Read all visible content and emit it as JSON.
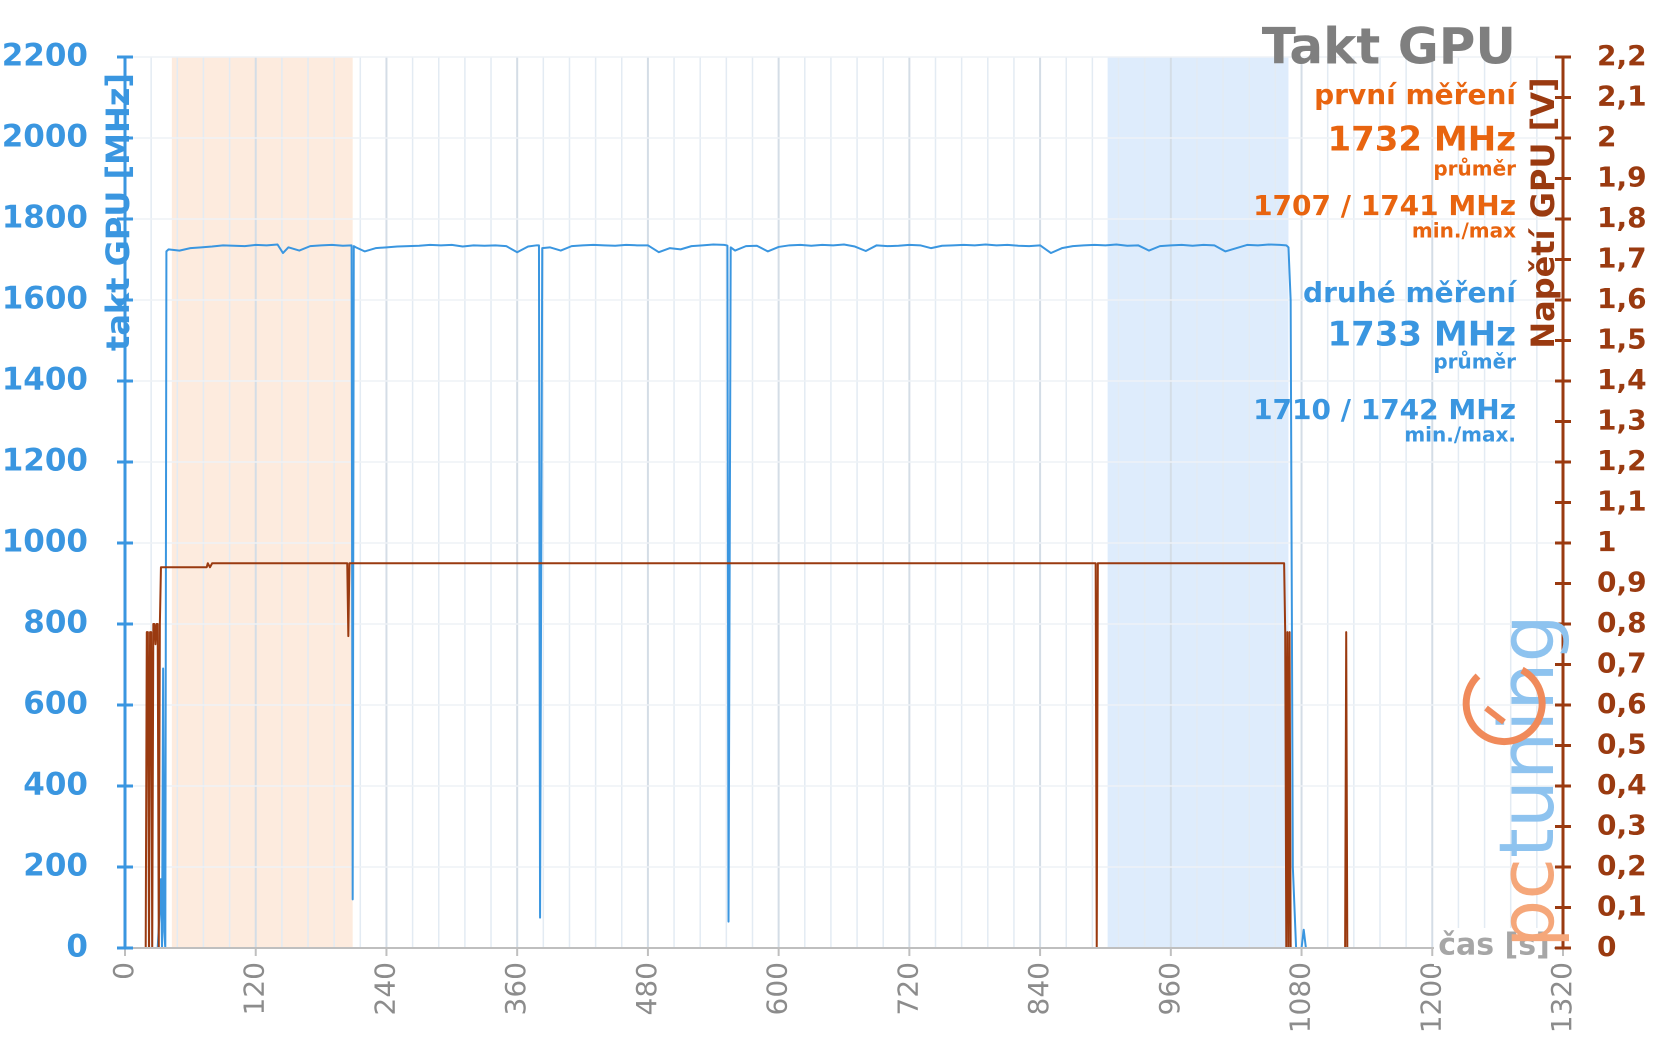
{
  "chart_data": {
    "type": "line",
    "title": "Takt GPU",
    "xlabel": "čas [s]",
    "ylabel": "takt GPU [MHz]",
    "y2label": "Napětí GPU [V]",
    "logo": [
      "pc",
      "tuning"
    ],
    "annotations": [
      {
        "text": "první měření",
        "color": "#e8640f"
      },
      {
        "text": "1732 MHz",
        "color": "#e8640f"
      },
      {
        "text": "průměr",
        "color": "#e8640f"
      },
      {
        "text": "1707 / 1741 MHz",
        "color": "#e8640f"
      },
      {
        "text": "min./max",
        "color": "#e8640f"
      },
      {
        "text": "druhé měření",
        "color": "#3a96e0"
      },
      {
        "text": "1733 MHz",
        "color": "#3a96e0"
      },
      {
        "text": "průměr",
        "color": "#3a96e0"
      },
      {
        "text": "1710 / 1742 MHz",
        "color": "#3a96e0"
      },
      {
        "text": "min./max.",
        "color": "#3a96e0"
      }
    ],
    "bands": [
      {
        "from": 43,
        "to": 209,
        "color": "#fde8d8"
      },
      {
        "from": 902,
        "to": 1068,
        "color": "#d8e9fb"
      }
    ],
    "xlim": [
      0,
      1320
    ],
    "xticks": [
      0,
      120,
      240,
      360,
      480,
      600,
      720,
      840,
      960,
      1080,
      1200,
      1320
    ],
    "ylim": [
      0,
      2200
    ],
    "yticks": [
      0,
      200,
      400,
      600,
      800,
      1000,
      1200,
      1400,
      1600,
      1800,
      2000,
      2200
    ],
    "y2lim": [
      0,
      2.2
    ],
    "y2ticks": [
      0,
      {
        "value": 0.1,
        "label": "0,1"
      },
      {
        "value": 0.2,
        "label": "0,2"
      },
      {
        "value": 0.3,
        "label": "0,3"
      },
      {
        "value": 0.4,
        "label": "0,4"
      },
      {
        "value": 0.5,
        "label": "0,5"
      },
      {
        "value": 0.6,
        "label": "0,6"
      },
      {
        "value": 0.7,
        "label": "0,7"
      },
      {
        "value": 0.8,
        "label": "0,8"
      },
      {
        "value": 0.9,
        "label": "0,9"
      },
      1,
      {
        "value": 1.1,
        "label": "1,1"
      },
      {
        "value": 1.2,
        "label": "1,2"
      },
      {
        "value": 1.3,
        "label": "1,3"
      },
      {
        "value": 1.4,
        "label": "1,4"
      },
      {
        "value": 1.5,
        "label": "1,5"
      },
      {
        "value": 1.6,
        "label": "1,6"
      },
      {
        "value": 1.7,
        "label": "1,7"
      },
      {
        "value": 1.8,
        "label": "1,8"
      },
      {
        "value": 1.9,
        "label": "1,9"
      },
      2,
      {
        "value": 2.1,
        "label": "2,1"
      },
      {
        "value": 2.2,
        "label": "2,2"
      }
    ],
    "grid": true,
    "minor_x_divisions": 5,
    "ycolor": "#3a96e0",
    "y2color": "#9a3a10",
    "series": [
      {
        "color": "#3a96e0",
        "axis": "y",
        "x": [
          0,
          30,
          32,
          33,
          34,
          35,
          36,
          37,
          38,
          40,
          50,
          60,
          70,
          80,
          90,
          100,
          110,
          120,
          130,
          140,
          145,
          150,
          160,
          170,
          180,
          190,
          200,
          208,
          209,
          210,
          212,
          220,
          230,
          240,
          250,
          260,
          270,
          280,
          290,
          300,
          310,
          320,
          330,
          340,
          350,
          360,
          370,
          378,
          380,
          381,
          383,
          390,
          400,
          410,
          420,
          430,
          440,
          450,
          460,
          470,
          480,
          490,
          500,
          510,
          520,
          530,
          540,
          550,
          552,
          553,
          554,
          556,
          560,
          570,
          580,
          590,
          600,
          610,
          620,
          630,
          640,
          650,
          660,
          670,
          680,
          690,
          700,
          710,
          720,
          730,
          740,
          750,
          760,
          770,
          780,
          790,
          800,
          810,
          820,
          830,
          840,
          850,
          860,
          870,
          880,
          890,
          900,
          910,
          920,
          930,
          940,
          950,
          960,
          970,
          980,
          990,
          1000,
          1010,
          1020,
          1030,
          1040,
          1050,
          1060,
          1066,
          1068,
          1070,
          1072,
          1075,
          1080,
          1082,
          1084,
          1200
        ],
        "values": [
          0,
          0,
          100,
          170,
          0,
          690,
          40,
          0,
          1720,
          1725,
          1722,
          1728,
          1730,
          1732,
          1735,
          1734,
          1733,
          1736,
          1735,
          1737,
          1716,
          1730,
          1722,
          1733,
          1735,
          1736,
          1734,
          1735,
          120,
          1733,
          1730,
          1720,
          1728,
          1730,
          1732,
          1733,
          1734,
          1736,
          1735,
          1736,
          1732,
          1735,
          1734,
          1735,
          1733,
          1718,
          1732,
          1735,
          1735,
          75,
          1728,
          1730,
          1722,
          1733,
          1735,
          1736,
          1735,
          1734,
          1736,
          1735,
          1735,
          1718,
          1728,
          1725,
          1733,
          1735,
          1737,
          1736,
          1735,
          1734,
          65,
          1730,
          1722,
          1733,
          1734,
          1720,
          1731,
          1735,
          1736,
          1734,
          1736,
          1735,
          1737,
          1732,
          1721,
          1735,
          1733,
          1734,
          1736,
          1735,
          1728,
          1734,
          1735,
          1736,
          1735,
          1737,
          1735,
          1736,
          1734,
          1733,
          1735,
          1716,
          1728,
          1733,
          1735,
          1736,
          1735,
          1737,
          1734,
          1735,
          1722,
          1733,
          1735,
          1736,
          1734,
          1736,
          1735,
          1720,
          1728,
          1736,
          1735,
          1737,
          1736,
          1735,
          1730,
          1600,
          200,
          0,
          0,
          45,
          0,
          0
        ]
      },
      {
        "color": "#9a3a10",
        "axis": "y2",
        "x": [
          0,
          19,
          20,
          21,
          22,
          23,
          24,
          25,
          26,
          27,
          28,
          29,
          30,
          31,
          32,
          33,
          75,
          76,
          78,
          80,
          85,
          90,
          204,
          205,
          206,
          891,
          892,
          893,
          1064,
          1065,
          1066,
          1067,
          1068,
          1069,
          1070,
          1071,
          1120,
          1121,
          1122,
          1200
        ],
        "values": [
          0,
          0,
          0.78,
          0.78,
          0,
          0.78,
          0.78,
          0,
          0.8,
          0.8,
          0.75,
          0.8,
          0.8,
          0,
          0.8,
          0.94,
          0.94,
          0.95,
          0.94,
          0.95,
          0.95,
          0.95,
          0.95,
          0.77,
          0.95,
          0.95,
          0,
          0.95,
          0.95,
          0.78,
          0,
          0.78,
          0,
          0.78,
          0,
          0,
          0,
          0.78,
          0,
          0
        ]
      }
    ]
  }
}
